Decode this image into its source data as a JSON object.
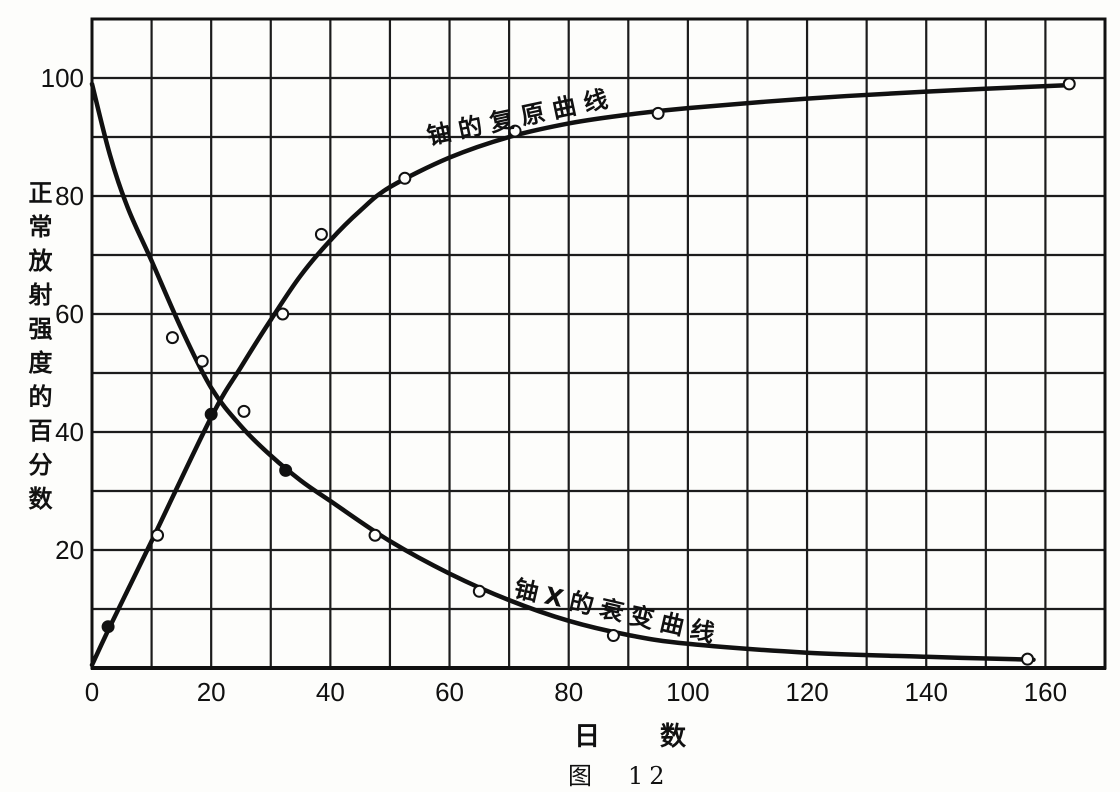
{
  "chart_data": {
    "type": "line",
    "xlabel": "日　数",
    "ylabel": "正常放射强度的百分数",
    "caption": "图　12",
    "xlim": [
      0,
      170
    ],
    "ylim": [
      0,
      110
    ],
    "x_ticks": [
      0,
      20,
      40,
      60,
      80,
      100,
      120,
      140,
      160
    ],
    "y_ticks": [
      20,
      40,
      60,
      80,
      100
    ],
    "grid": true,
    "series": [
      {
        "name": "铀的复原曲线",
        "curve": [
          [
            0,
            0.5
          ],
          [
            3,
            7
          ],
          [
            10,
            21.5
          ],
          [
            20,
            42.5
          ],
          [
            25,
            51
          ],
          [
            30,
            59
          ],
          [
            35,
            66.5
          ],
          [
            40,
            72.5
          ],
          [
            45,
            77.5
          ],
          [
            50,
            81.5
          ],
          [
            60,
            86.5
          ],
          [
            70,
            90
          ],
          [
            80,
            92.3
          ],
          [
            90,
            93.8
          ],
          [
            100,
            94.9
          ],
          [
            120,
            96.5
          ],
          [
            140,
            97.7
          ],
          [
            164,
            98.8
          ]
        ],
        "points": [
          {
            "x": 2.7,
            "y": 7,
            "filled": true
          },
          {
            "x": 11,
            "y": 22.5,
            "filled": false
          },
          {
            "x": 20,
            "y": 43,
            "filled": true
          },
          {
            "x": 32,
            "y": 60,
            "filled": false
          },
          {
            "x": 38.5,
            "y": 73.5,
            "filled": false
          },
          {
            "x": 52.5,
            "y": 83,
            "filled": false
          },
          {
            "x": 71,
            "y": 91,
            "filled": false
          },
          {
            "x": 95,
            "y": 94,
            "filled": false
          },
          {
            "x": 164,
            "y": 99,
            "filled": false
          }
        ]
      },
      {
        "name": "铀X的衰变曲线",
        "curve": [
          [
            0,
            99
          ],
          [
            3,
            87
          ],
          [
            6,
            78
          ],
          [
            10,
            69
          ],
          [
            15,
            57.5
          ],
          [
            20,
            47.5
          ],
          [
            25,
            41
          ],
          [
            30,
            36
          ],
          [
            35,
            31.8
          ],
          [
            40,
            28.3
          ],
          [
            50,
            21.5
          ],
          [
            60,
            16
          ],
          [
            70,
            11.5
          ],
          [
            80,
            8
          ],
          [
            90,
            5.6
          ],
          [
            100,
            4.1
          ],
          [
            120,
            2.6
          ],
          [
            140,
            1.9
          ],
          [
            158,
            1.4
          ]
        ],
        "points": [
          {
            "x": 13.5,
            "y": 56,
            "filled": false
          },
          {
            "x": 18.5,
            "y": 52,
            "filled": false
          },
          {
            "x": 25.5,
            "y": 43.5,
            "filled": false
          },
          {
            "x": 32.5,
            "y": 33.5,
            "filled": true
          },
          {
            "x": 47.5,
            "y": 22.5,
            "filled": false
          },
          {
            "x": 65,
            "y": 13,
            "filled": false
          },
          {
            "x": 87.5,
            "y": 5.5,
            "filled": false
          },
          {
            "x": 157,
            "y": 1.5,
            "filled": false
          }
        ]
      }
    ]
  }
}
